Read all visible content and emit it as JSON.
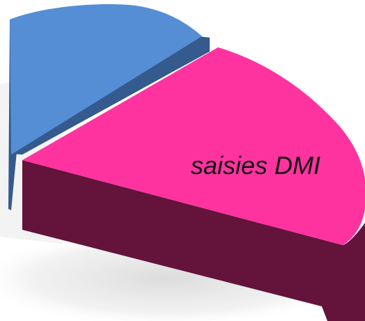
{
  "chart_data": {
    "type": "pie",
    "style": "3d-exploded",
    "slices": [
      {
        "label": "",
        "color": "#558ed5",
        "side_color": "#345a8e"
      },
      {
        "label": "saisies DMI",
        "color": "#ff33a0",
        "side_color": "#64133b"
      }
    ],
    "legend": "none"
  }
}
